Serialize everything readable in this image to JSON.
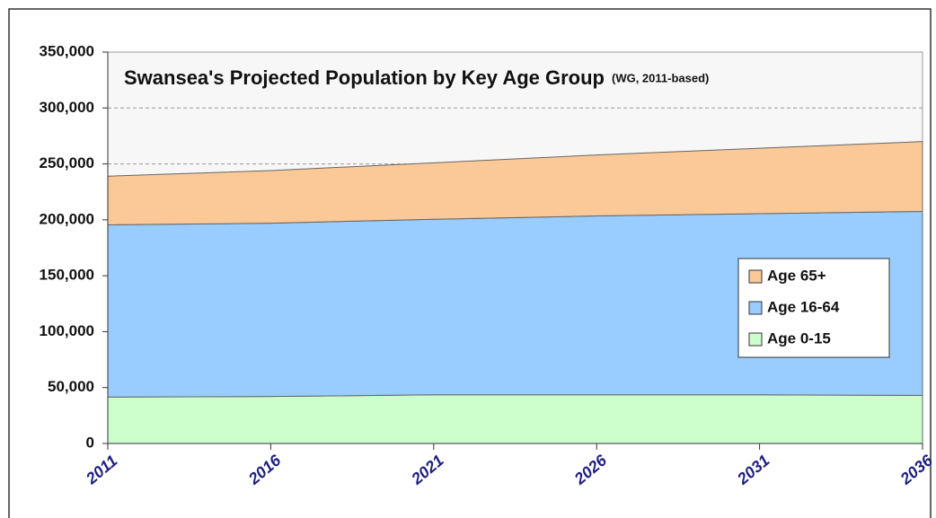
{
  "chart_data": {
    "type": "stacked_area",
    "title": "Swansea's Projected Population by Key Age Group",
    "subtitle": "(WG, 2011-based)",
    "x": [
      2011,
      2016,
      2021,
      2026,
      2031,
      2036
    ],
    "xlim": [
      2011,
      2036
    ],
    "xticks": [
      2011,
      2016,
      2021,
      2026,
      2031,
      2036
    ],
    "ylim": [
      0,
      350000
    ],
    "yticks": [
      0,
      {
        "value": 50000,
        "label": "50,000"
      },
      {
        "value": 100000,
        "label": "100,000"
      },
      {
        "value": 150000,
        "label": "150,000"
      },
      {
        "value": 200000,
        "label": "200,000"
      },
      {
        "value": 250000,
        "label": "250,000"
      },
      {
        "value": 300000,
        "label": "300,000"
      },
      {
        "value": 350000,
        "label": "350,000"
      }
    ],
    "grid": true,
    "legend": "right",
    "series": [
      {
        "name": "Age 0-15",
        "color": "#ccffcc",
        "values": [
          41500,
          42000,
          43500,
          43500,
          43500,
          43000
        ]
      },
      {
        "name": "Age 16-64",
        "color": "#99ccff",
        "values": [
          154000,
          155000,
          157000,
          160000,
          162000,
          164500
        ]
      },
      {
        "name": "Age 65+",
        "color": "#fbc997",
        "values": [
          43500,
          47000,
          50500,
          54500,
          58500,
          62500
        ]
      }
    ]
  }
}
